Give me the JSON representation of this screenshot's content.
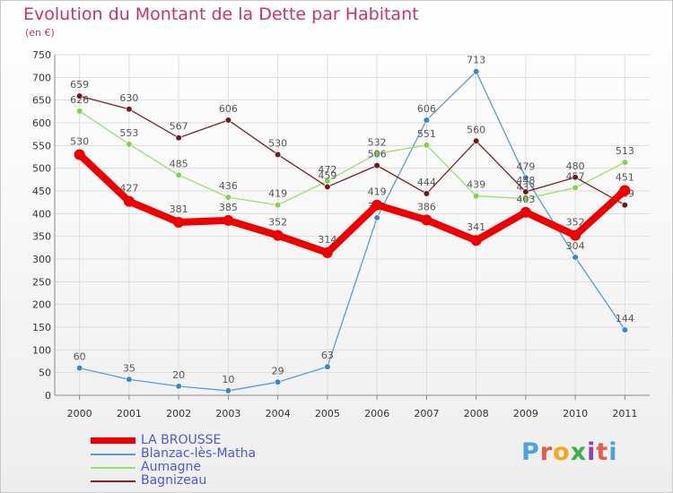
{
  "chart_data": {
    "type": "line",
    "title": "Evolution du Montant de la Dette par Habitant",
    "subtitle": "(en €)",
    "x": [
      "2000",
      "2001",
      "2002",
      "2003",
      "2004",
      "2005",
      "2006",
      "2007",
      "2008",
      "2009",
      "2010",
      "2011"
    ],
    "ylim": [
      0,
      750
    ],
    "yticks": [
      0,
      50,
      100,
      150,
      200,
      250,
      300,
      350,
      400,
      450,
      500,
      550,
      600,
      650,
      700,
      750
    ],
    "grid": true,
    "legend_position": "bottom-left",
    "series": [
      {
        "name": "LA BROUSSE",
        "color": "#ee0000",
        "values": [
          530,
          427,
          381,
          385,
          352,
          314,
          419,
          386,
          341,
          403,
          352,
          451
        ]
      },
      {
        "name": "Blanzac-lès-Matha",
        "color": "#5b9bd5",
        "values": [
          60,
          35,
          20,
          10,
          29,
          63,
          391,
          606,
          713,
          479,
          304,
          144
        ]
      },
      {
        "name": "Aumagne",
        "color": "#99e06a",
        "values": [
          626,
          553,
          485,
          436,
          419,
          472,
          532,
          551,
          439,
          433,
          457,
          513
        ]
      },
      {
        "name": "Bagnizeau",
        "color": "#7b2323",
        "values": [
          659,
          630,
          567,
          606,
          530,
          459,
          506,
          444,
          560,
          448,
          480,
          419
        ]
      }
    ]
  },
  "logo": {
    "text": "Proxiti"
  }
}
